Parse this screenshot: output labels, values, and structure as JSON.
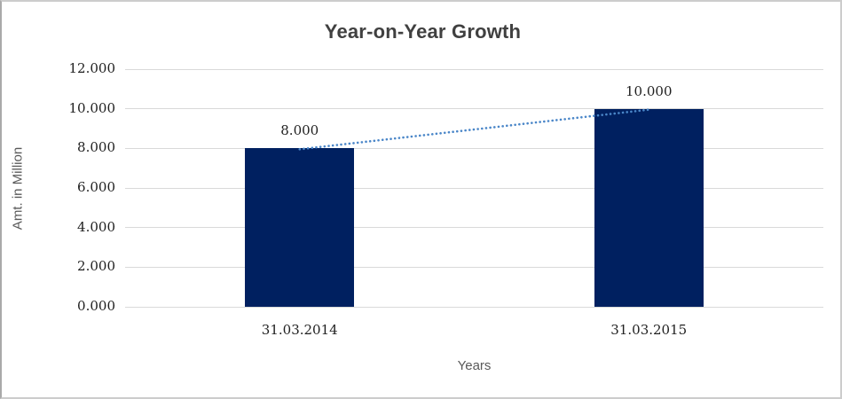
{
  "chart": {
    "title": "Year-on-Year Growth",
    "y_axis_title": "Amt. in Million",
    "x_axis_title": "Years"
  },
  "chart_data": {
    "type": "bar",
    "title": "Year-on-Year Growth",
    "xlabel": "Years",
    "ylabel": "Amt. in Million",
    "categories": [
      "31.03.2014",
      "31.03.2015"
    ],
    "values": [
      8.0,
      10.0
    ],
    "data_labels": [
      "8.000",
      "10.000"
    ],
    "ylim": [
      0,
      12
    ],
    "ytick_step": 2,
    "ytick_labels": [
      "0.000",
      "2.000",
      "4.000",
      "6.000",
      "8.000",
      "10.000",
      "12.000"
    ],
    "grid": true,
    "legend_position": "none",
    "bar_color": "#002060",
    "gridline_color": "#d9d9d9",
    "trendline": {
      "type": "linear",
      "style": "dotted",
      "color": "#4a86c8"
    }
  }
}
